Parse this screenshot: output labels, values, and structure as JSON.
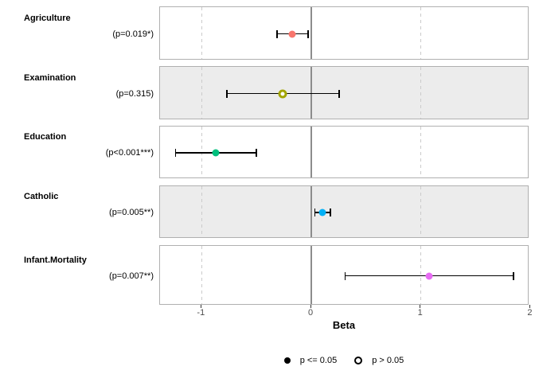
{
  "figure": {
    "background": "#ffffff",
    "panel_border_color": "#b0b0b0",
    "panel_stripe_colors": [
      "#ffffff",
      "#ececec"
    ],
    "zero_line_color": "#8c8c8c",
    "grid_line_color": "#cbcbcb",
    "errorbar_color": "#000000",
    "tick_color": "#333333",
    "tick_label_color": "#4d4d4d"
  },
  "chart_data": {
    "type": "forest",
    "title": "",
    "xlabel": "Beta",
    "xlim": [
      -1.38,
      1.99
    ],
    "x_ticks": [
      "-1",
      "0",
      "1",
      "2"
    ],
    "x_tick_values": [
      -1,
      0,
      1,
      2
    ],
    "grid_dashed_at": [
      -1,
      1
    ],
    "zero_line_at": 0,
    "rows": [
      {
        "term": "Agriculture",
        "p_label": "(p=0.019*)",
        "estimate": -0.172,
        "ci_low": -0.313,
        "ci_high": -0.03,
        "color": "#F8766D",
        "marker": "filled"
      },
      {
        "term": "Examination",
        "p_label": "(p=0.315)",
        "estimate": -0.258,
        "ci_low": -0.769,
        "ci_high": 0.253,
        "color": "#A3A500",
        "marker": "open"
      },
      {
        "term": "Education",
        "p_label": "(p<0.001***)",
        "estimate": -0.871,
        "ci_low": -1.24,
        "ci_high": -0.502,
        "color": "#00BF7D",
        "marker": "filled"
      },
      {
        "term": "Catholic",
        "p_label": "(p=0.005**)",
        "estimate": 0.104,
        "ci_low": 0.033,
        "ci_high": 0.175,
        "color": "#00B0F6",
        "marker": "filled"
      },
      {
        "term": "Infant.Mortality",
        "p_label": "(p=0.007**)",
        "estimate": 1.077,
        "ci_low": 0.308,
        "ci_high": 1.846,
        "color": "#E76BF3",
        "marker": "filled"
      }
    ],
    "legend": [
      {
        "label": "p <= 0.05",
        "marker": "filled",
        "color": "#000000"
      },
      {
        "label": "p > 0.05",
        "marker": "open",
        "color": "#000000"
      }
    ]
  }
}
